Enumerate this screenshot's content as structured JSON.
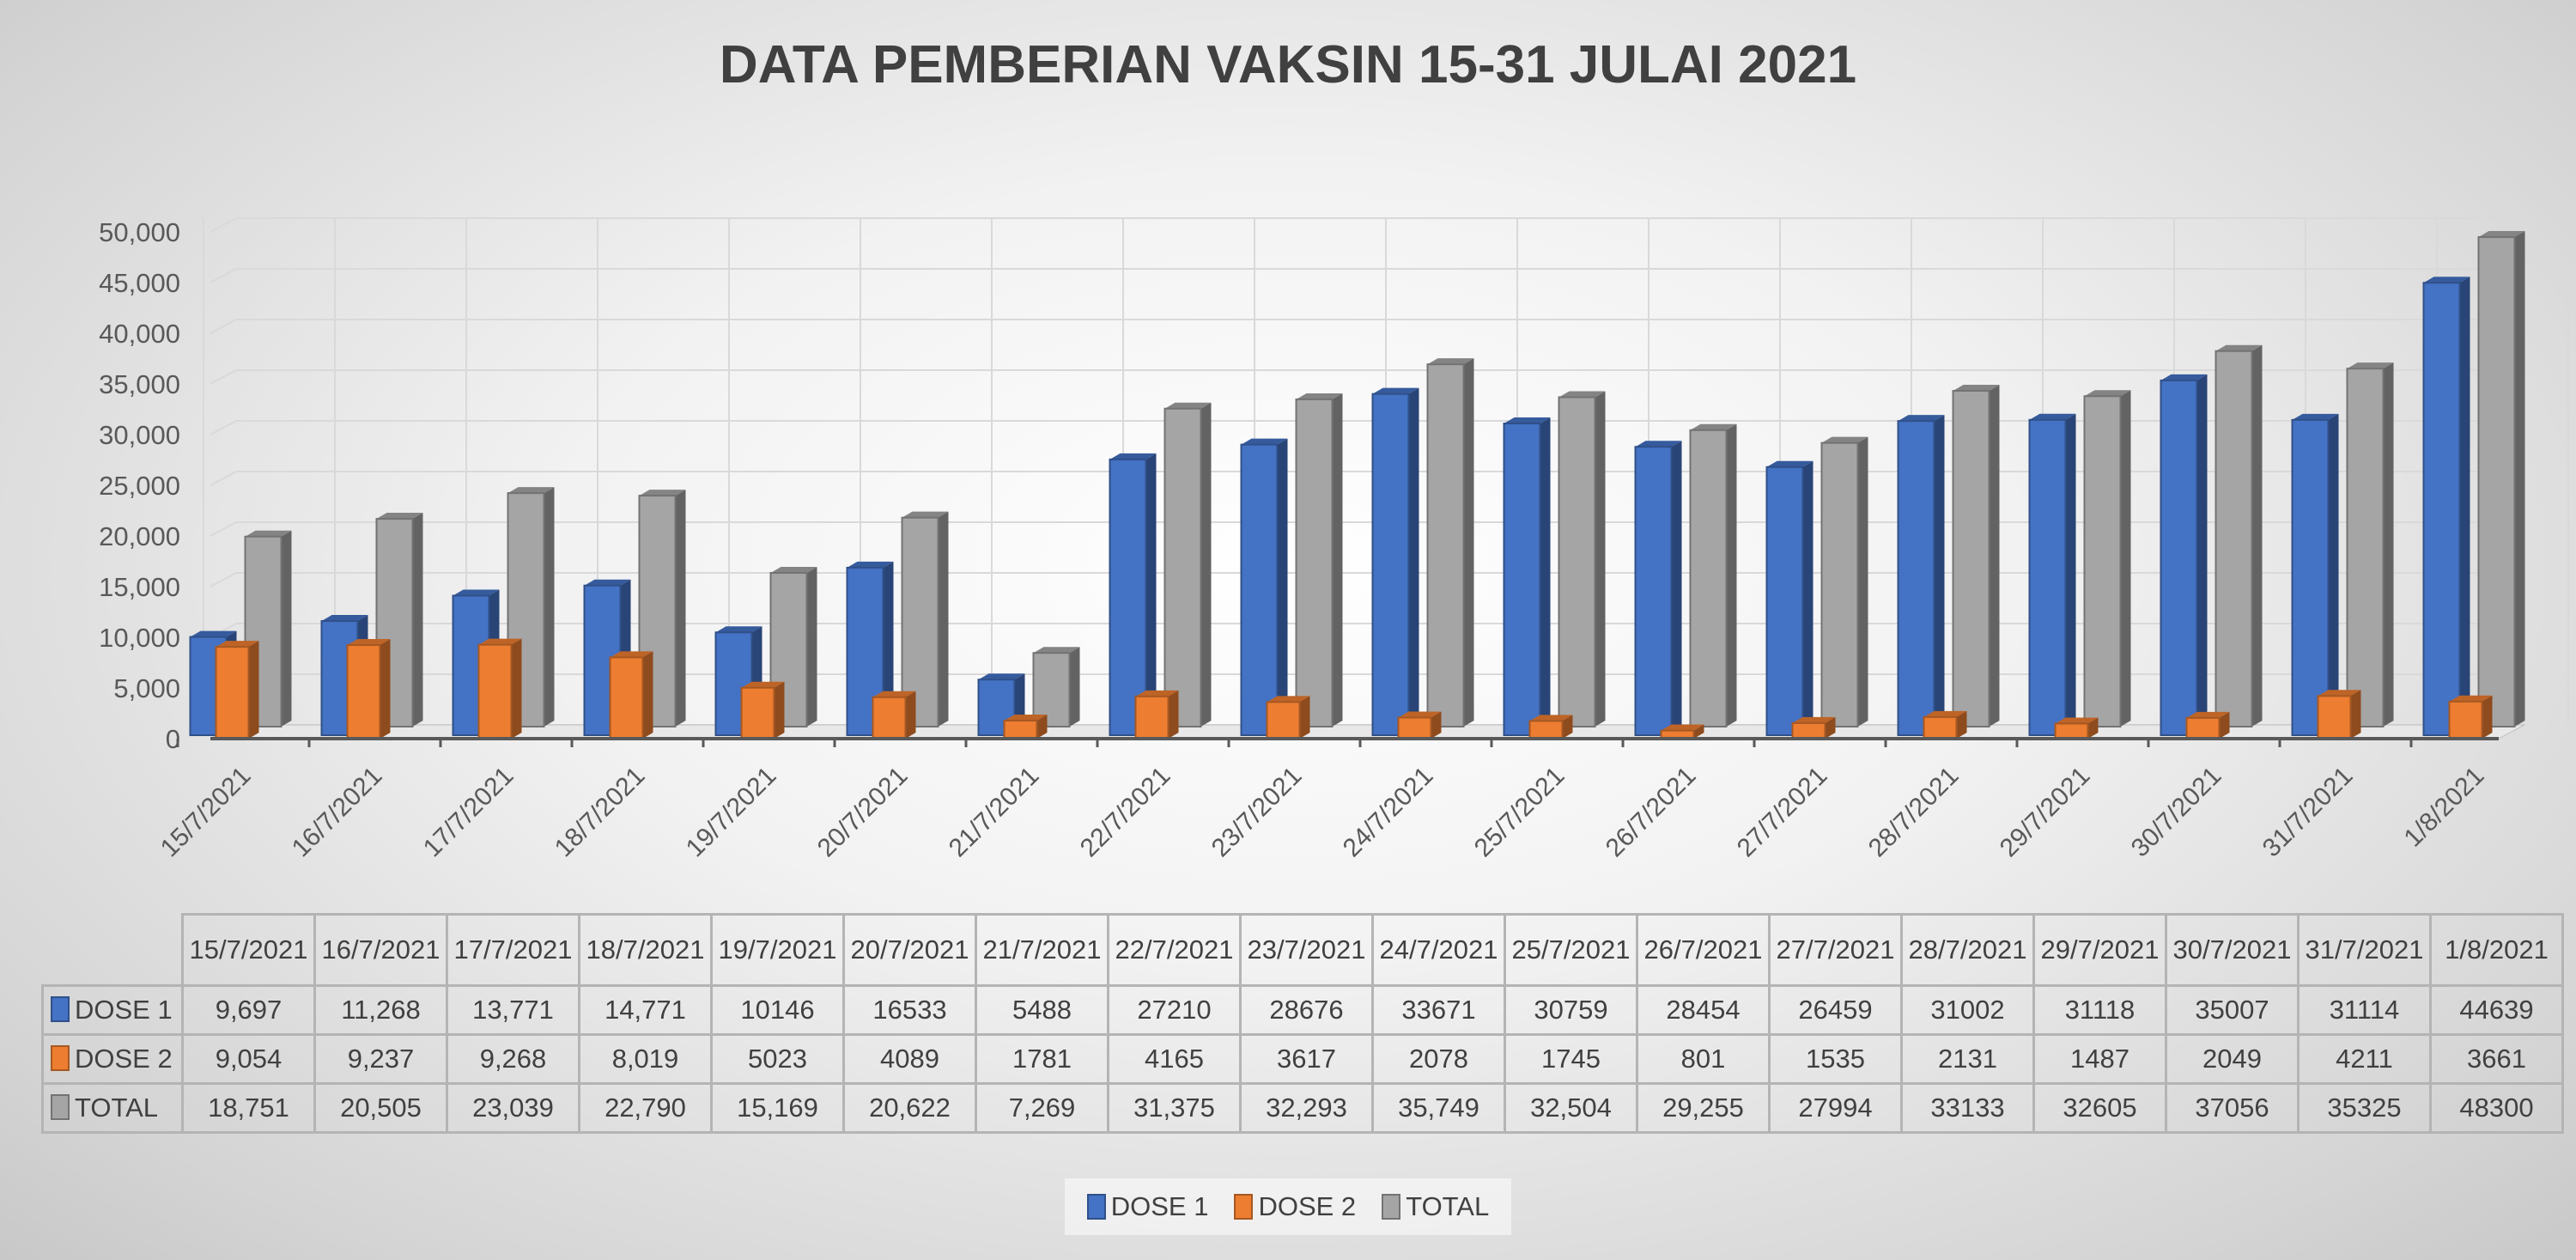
{
  "chart_data": {
    "type": "bar",
    "title": "DATA PEMBERIAN VAKSIN 15-31 JULAI 2021",
    "categories": [
      "15/7/2021",
      "16/7/2021",
      "17/7/2021",
      "18/7/2021",
      "19/7/2021",
      "20/7/2021",
      "21/7/2021",
      "22/7/2021",
      "23/7/2021",
      "24/7/2021",
      "25/7/2021",
      "26/7/2021",
      "27/7/2021",
      "28/7/2021",
      "29/7/2021",
      "30/7/2021",
      "31/7/2021",
      "1/8/2021"
    ],
    "series": [
      {
        "name": "DOSE 1",
        "color": "#4472C4",
        "values": [
          9697,
          11268,
          13771,
          14771,
          10146,
          16533,
          5488,
          27210,
          28676,
          33671,
          30759,
          28454,
          26459,
          31002,
          31118,
          35007,
          31114,
          44639
        ],
        "labels": [
          "9,697",
          "11,268",
          "13,771",
          "14,771",
          "10146",
          "16533",
          "5488",
          "27210",
          "28676",
          "33671",
          "30759",
          "28454",
          "26459",
          "31002",
          "31118",
          "35007",
          "31114",
          "44639"
        ]
      },
      {
        "name": "DOSE 2",
        "color": "#ED7D31",
        "values": [
          9054,
          9237,
          9268,
          8019,
          5023,
          4089,
          1781,
          4165,
          3617,
          2078,
          1745,
          801,
          1535,
          2131,
          1487,
          2049,
          4211,
          3661
        ],
        "labels": [
          "9,054",
          "9,237",
          "9,268",
          "8,019",
          "5023",
          "4089",
          "1781",
          "4165",
          "3617",
          "2078",
          "1745",
          "801",
          "1535",
          "2131",
          "1487",
          "2049",
          "4211",
          "3661"
        ]
      },
      {
        "name": "TOTAL",
        "color": "#A5A5A5",
        "values": [
          18751,
          20505,
          23039,
          22790,
          15169,
          20622,
          7269,
          31375,
          32293,
          35749,
          32504,
          29255,
          27994,
          33133,
          32605,
          37056,
          35325,
          48300
        ],
        "labels": [
          "18,751",
          "20,505",
          "23,039",
          "22,790",
          "15,169",
          "20,622",
          "7,269",
          "31,375",
          "32,293",
          "35,749",
          "32,504",
          "29,255",
          "27994",
          "33133",
          "32605",
          "37056",
          "35325",
          "48300"
        ]
      }
    ],
    "ylim": [
      0,
      50000
    ],
    "yticks": [
      "0",
      "5,000",
      "10,000",
      "15,000",
      "20,000",
      "25,000",
      "30,000",
      "35,000",
      "40,000",
      "45,000",
      "50,000"
    ],
    "grid": true,
    "legend": "bottom",
    "data_table": true
  }
}
